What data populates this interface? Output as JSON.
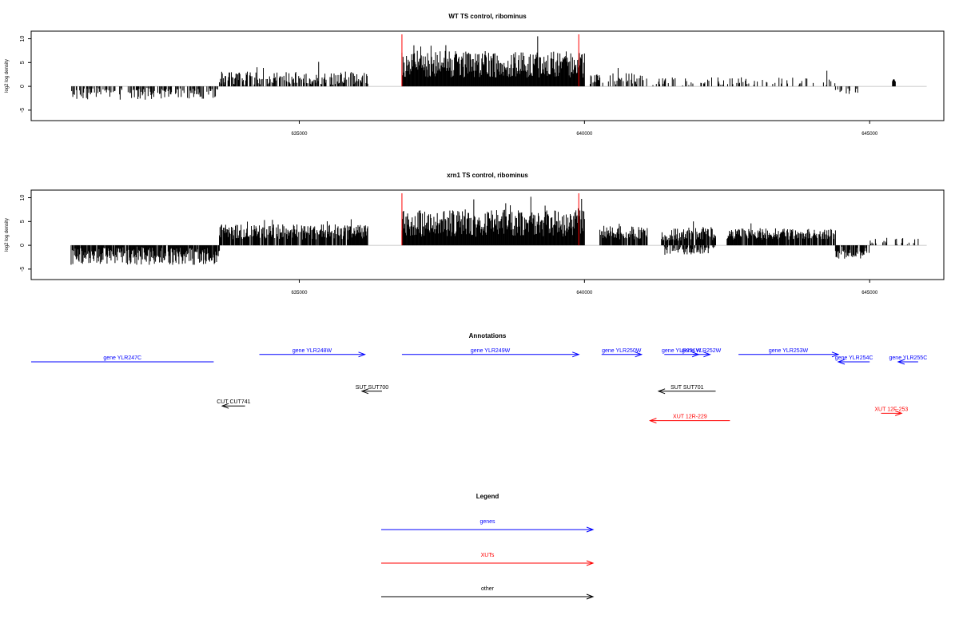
{
  "chart_data": [
    {
      "type": "bar",
      "title": "WT TS control, ribominus",
      "ylabel": "log2 log density",
      "xlabel": "",
      "xlim": [
        630300,
        646300
      ],
      "ylim": [
        -7.2,
        11.6
      ],
      "xticks": [
        635000,
        640000,
        645000
      ],
      "xtick_labels": [
        "635000",
        "640000",
        "645000"
      ],
      "yticks": [
        -5,
        0,
        5,
        10
      ],
      "ytick_labels": [
        "-5",
        "0",
        "5",
        "10"
      ],
      "baseline_range": [
        631000,
        646000
      ],
      "marker_lines": [
        636800,
        639900
      ],
      "marker_color": "#ff0000",
      "series": [
        {
          "x_range": [
            631000,
            633600
          ],
          "mean": -1.6,
          "amp": 1.2,
          "density": 0.45
        },
        {
          "x_range": [
            633600,
            636200
          ],
          "mean": 1.7,
          "amp": 1.4,
          "density": 0.55
        },
        {
          "x_range": [
            636800,
            640000
          ],
          "mean": 4.6,
          "amp": 2.8,
          "density": 1.0
        },
        {
          "x_range": [
            640100,
            641100
          ],
          "mean": 1.6,
          "amp": 1.2,
          "density": 0.4
        },
        {
          "x_range": [
            641200,
            644400
          ],
          "mean": 1.0,
          "amp": 0.9,
          "density": 0.22
        },
        {
          "x_range": [
            644400,
            644800
          ],
          "mean": -1.0,
          "amp": 0.6,
          "density": 0.3
        },
        {
          "x_range": [
            645400,
            645450
          ],
          "mean": 1.3,
          "amp": 0.3,
          "density": 1.0
        }
      ]
    },
    {
      "type": "bar",
      "title": "xrn1 TS control, ribominus",
      "ylabel": "log2 log density",
      "xlabel": "",
      "xlim": [
        630300,
        646300
      ],
      "ylim": [
        -7.2,
        11.6
      ],
      "xticks": [
        635000,
        640000,
        645000
      ],
      "xtick_labels": [
        "635000",
        "640000",
        "645000"
      ],
      "yticks": [
        -5,
        0,
        5,
        10
      ],
      "ytick_labels": [
        "-5",
        "0",
        "5",
        "10"
      ],
      "baseline_range": [
        631000,
        646000
      ],
      "marker_lines": [
        636800,
        639900
      ],
      "marker_color": "#ff0000",
      "series": [
        {
          "x_range": [
            631000,
            633600
          ],
          "mean": -2.3,
          "amp": 1.8,
          "density": 0.9
        },
        {
          "x_range": [
            633600,
            636200
          ],
          "mean": 2.8,
          "amp": 1.6,
          "density": 0.9
        },
        {
          "x_range": [
            636800,
            640000
          ],
          "mean": 4.6,
          "amp": 2.8,
          "density": 1.0
        },
        {
          "x_range": [
            640250,
            641100
          ],
          "mean": 2.6,
          "amp": 1.4,
          "density": 0.85
        },
        {
          "x_range": [
            641350,
            642300
          ],
          "mean": 2.3,
          "amp": 1.4,
          "density": 0.85
        },
        {
          "x_range": [
            641400,
            642300
          ],
          "mean": -1.2,
          "amp": 0.9,
          "density": 0.5
        },
        {
          "x_range": [
            642500,
            644400
          ],
          "mean": 2.4,
          "amp": 1.2,
          "density": 0.85
        },
        {
          "x_range": [
            644400,
            645000
          ],
          "mean": -1.9,
          "amp": 1.0,
          "density": 0.7
        },
        {
          "x_range": [
            645000,
            645900
          ],
          "mean": 0.8,
          "amp": 0.8,
          "density": 0.25
        }
      ]
    }
  ],
  "annotations": {
    "title": "Annotations",
    "features": [
      {
        "label": "gene YLR247C",
        "start": 633500,
        "end": 630300,
        "row": 0,
        "color": "#0000ff",
        "arrow": false
      },
      {
        "label": "gene YLR248W",
        "start": 634300,
        "end": 636150,
        "row": 1,
        "color": "#0000ff",
        "arrow": true
      },
      {
        "label": "gene YLR249W",
        "start": 636800,
        "end": 639900,
        "row": 1,
        "color": "#0000ff",
        "arrow": true
      },
      {
        "label": "gene YLR250W",
        "start": 640300,
        "end": 641000,
        "row": 1,
        "color": "#0000ff",
        "arrow": true
      },
      {
        "label": "gene YLR251W",
        "start": 641400,
        "end": 642000,
        "row": 1,
        "color": "#0000ff",
        "arrow": true
      },
      {
        "label": "gene YLR252W",
        "start": 641900,
        "end": 642200,
        "row": 1,
        "color": "#0000ff",
        "arrow": true
      },
      {
        "label": "gene YLR253W",
        "start": 642700,
        "end": 644450,
        "row": 1,
        "color": "#0000ff",
        "arrow": true
      },
      {
        "label": "gene YLR254C",
        "start": 645000,
        "end": 644450,
        "row": 0,
        "color": "#0000ff",
        "arrow": true
      },
      {
        "label": "gene YLR255C",
        "start": 645850,
        "end": 645500,
        "row": 0,
        "color": "#0000ff",
        "arrow": true
      },
      {
        "label": "SUT SUT700",
        "start": 636450,
        "end": 636100,
        "row": -4,
        "color": "#000000",
        "arrow": true
      },
      {
        "label": "SUT SUT701",
        "start": 642300,
        "end": 641300,
        "row": -4,
        "color": "#000000",
        "arrow": true
      },
      {
        "label": "CUT CUT741",
        "start": 634050,
        "end": 633650,
        "row": -6,
        "color": "#000000",
        "arrow": true
      },
      {
        "label": "XUT 12R-229",
        "start": 642550,
        "end": 641150,
        "row": -8,
        "color": "#ff0000",
        "arrow": true
      },
      {
        "label": "XUT 12F-253",
        "start": 645200,
        "end": 645560,
        "row": -7,
        "color": "#ff0000",
        "arrow": true
      }
    ]
  },
  "legend": {
    "title": "Legend",
    "items": [
      {
        "label": "genes",
        "color": "#0000ff"
      },
      {
        "label": "XUTs",
        "color": "#ff0000"
      },
      {
        "label": "other",
        "color": "#000000"
      }
    ]
  }
}
